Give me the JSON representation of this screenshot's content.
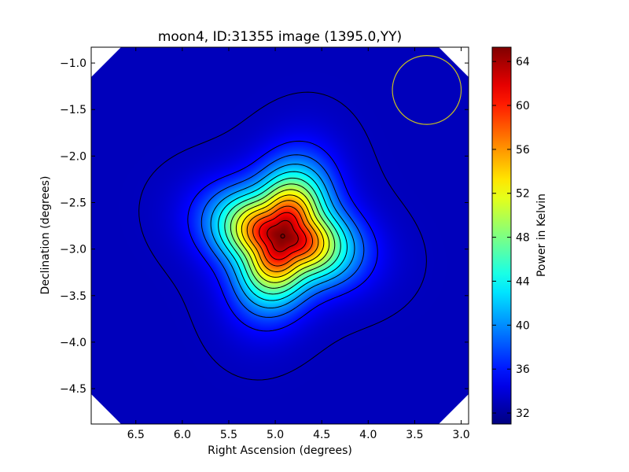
{
  "chart_data": {
    "type": "heatmap",
    "title": "moon4, ID:31355 image (1395.0,YY)",
    "xlabel": "Right Ascension (degrees)",
    "ylabel": "Declination (degrees)",
    "colorbar_label": "Power in Kelvin",
    "xlim": [
      6.98,
      2.92
    ],
    "ylim": [
      -4.88,
      -0.83
    ],
    "x_ticks": [
      6.5,
      6.0,
      5.5,
      5.0,
      4.5,
      4.0,
      3.5,
      3.0
    ],
    "x_tick_labels": [
      "6.5",
      "6.0",
      "5.5",
      "5.0",
      "4.5",
      "4.0",
      "3.5",
      "3.0"
    ],
    "y_ticks": [
      -1.0,
      -1.5,
      -2.0,
      -2.5,
      -3.0,
      -3.5,
      -4.0,
      -4.5
    ],
    "y_tick_labels": [
      "−1.0",
      "−1.5",
      "−2.0",
      "−2.5",
      "−3.0",
      "−3.5",
      "−4.0",
      "−4.5"
    ],
    "colorbar_range": [
      31.0,
      65.3
    ],
    "colorbar_ticks": [
      32,
      36,
      40,
      44,
      48,
      52,
      56,
      60,
      64
    ],
    "colorbar_tick_labels": [
      "32",
      "36",
      "40",
      "44",
      "48",
      "52",
      "56",
      "60",
      "64"
    ],
    "colormap": "jet",
    "background_value": 33.0,
    "source_peak": {
      "x": 4.92,
      "y": -2.86,
      "value": 65.2
    },
    "contour_step": 2.5,
    "contour_count": 13,
    "beam_circle": {
      "x": 3.37,
      "y": -1.29,
      "radius": 0.37,
      "color": "#c8c020"
    },
    "masked_corners_color": "#ffffff",
    "grid": false
  }
}
